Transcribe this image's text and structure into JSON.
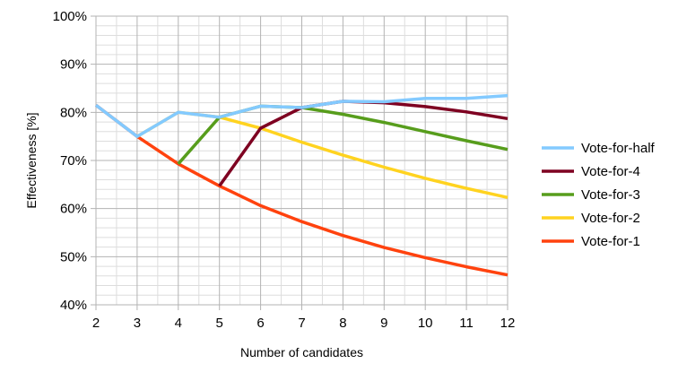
{
  "chart_data": {
    "type": "line",
    "title": "",
    "xlabel": "Number of candidates",
    "ylabel": "Effectiveness [%]",
    "x": [
      2,
      3,
      4,
      5,
      6,
      7,
      8,
      9,
      10,
      11,
      12
    ],
    "xlim": [
      2,
      12
    ],
    "ylim": [
      40,
      100
    ],
    "y_ticks": [
      40,
      50,
      60,
      70,
      80,
      90,
      100
    ],
    "y_tick_labels": [
      "40%",
      "50%",
      "60%",
      "70%",
      "80%",
      "90%",
      "100%"
    ],
    "x_tick_labels": [
      "2",
      "3",
      "4",
      "5",
      "6",
      "7",
      "8",
      "9",
      "10",
      "11",
      "12"
    ],
    "y_minor_step": 2,
    "x_minor_step": 0.5,
    "grid": true,
    "legend_position": "right",
    "series": [
      {
        "name": "Vote-for-half",
        "color": "#83caff",
        "points": [
          [
            2,
            81.5
          ],
          [
            3,
            75.0
          ],
          [
            4,
            80.0
          ],
          [
            5,
            79.0
          ],
          [
            6,
            81.3
          ],
          [
            7,
            81.0
          ],
          [
            8,
            82.3
          ],
          [
            9,
            82.2
          ],
          [
            10,
            82.9
          ],
          [
            11,
            82.9
          ],
          [
            12,
            83.5
          ]
        ]
      },
      {
        "name": "Vote-for-4",
        "color": "#7e0021",
        "points": [
          [
            5,
            64.7
          ],
          [
            6,
            76.7
          ],
          [
            7,
            81.0
          ],
          [
            8,
            82.3
          ],
          [
            9,
            82.0
          ],
          [
            10,
            81.2
          ],
          [
            11,
            80.1
          ],
          [
            12,
            78.7
          ]
        ]
      },
      {
        "name": "Vote-for-3",
        "color": "#579d1c",
        "points": [
          [
            4,
            69.3
          ],
          [
            5,
            79.0
          ],
          [
            6,
            81.3
          ],
          [
            7,
            81.0
          ],
          [
            8,
            79.6
          ],
          [
            9,
            77.9
          ],
          [
            10,
            76.0
          ],
          [
            11,
            74.1
          ],
          [
            12,
            72.3
          ]
        ]
      },
      {
        "name": "Vote-for-2",
        "color": "#ffd320",
        "points": [
          [
            3,
            75.0
          ],
          [
            4,
            80.0
          ],
          [
            5,
            79.0
          ],
          [
            6,
            76.7
          ],
          [
            7,
            73.8
          ],
          [
            8,
            71.1
          ],
          [
            9,
            68.6
          ],
          [
            10,
            66.3
          ],
          [
            11,
            64.2
          ],
          [
            12,
            62.3
          ]
        ]
      },
      {
        "name": "Vote-for-1",
        "color": "#ff420e",
        "points": [
          [
            2,
            81.5
          ],
          [
            3,
            75.0
          ],
          [
            4,
            69.3
          ],
          [
            5,
            64.7
          ],
          [
            6,
            60.6
          ],
          [
            7,
            57.3
          ],
          [
            8,
            54.4
          ],
          [
            9,
            51.9
          ],
          [
            10,
            49.8
          ],
          [
            11,
            47.9
          ],
          [
            12,
            46.2
          ]
        ]
      }
    ]
  }
}
